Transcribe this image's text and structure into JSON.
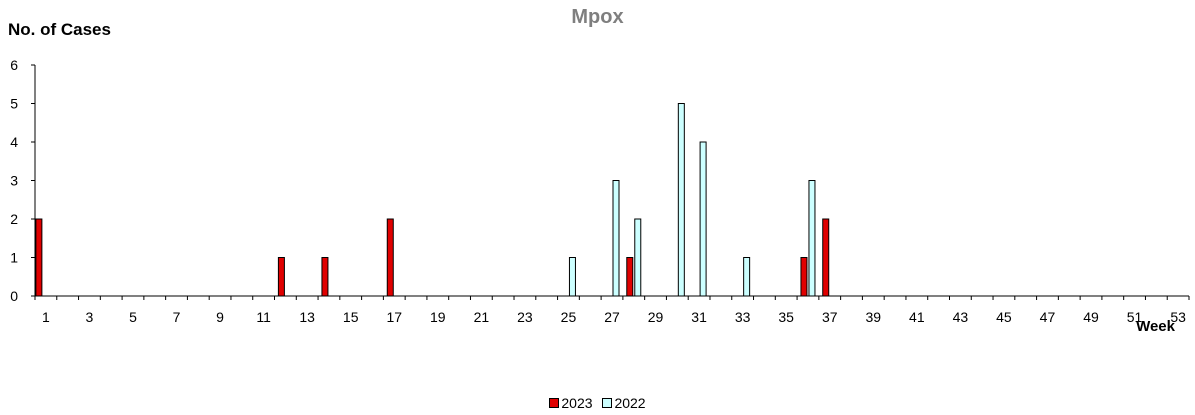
{
  "chart_data": {
    "type": "bar",
    "title": "Mpox",
    "ylabel": "No. of Cases",
    "xlabel": "Week",
    "ylim": [
      0,
      6
    ],
    "yticks": [
      0,
      1,
      2,
      3,
      4,
      5,
      6
    ],
    "x_range": [
      1,
      53
    ],
    "x_tick_labels": [
      "1",
      "3",
      "5",
      "7",
      "9",
      "11",
      "13",
      "15",
      "17",
      "19",
      "21",
      "23",
      "25",
      "27",
      "29",
      "31",
      "33",
      "35",
      "37",
      "39",
      "41",
      "43",
      "45",
      "47",
      "49",
      "51",
      "53"
    ],
    "grid": false,
    "legend_position": "bottom",
    "series": [
      {
        "name": "2023",
        "color": "#e00000",
        "points": [
          {
            "week": 1,
            "value": 2
          },
          {
            "week": 12,
            "value": 1
          },
          {
            "week": 14,
            "value": 1
          },
          {
            "week": 17,
            "value": 2
          },
          {
            "week": 28,
            "value": 1
          },
          {
            "week": 36,
            "value": 1
          },
          {
            "week": 37,
            "value": 2
          }
        ]
      },
      {
        "name": "2022",
        "color": "#ccffff",
        "points": [
          {
            "week": 25,
            "value": 1
          },
          {
            "week": 27,
            "value": 3
          },
          {
            "week": 28,
            "value": 2
          },
          {
            "week": 30,
            "value": 5
          },
          {
            "week": 31,
            "value": 4
          },
          {
            "week": 33,
            "value": 1
          },
          {
            "week": 36,
            "value": 3
          }
        ]
      }
    ]
  }
}
